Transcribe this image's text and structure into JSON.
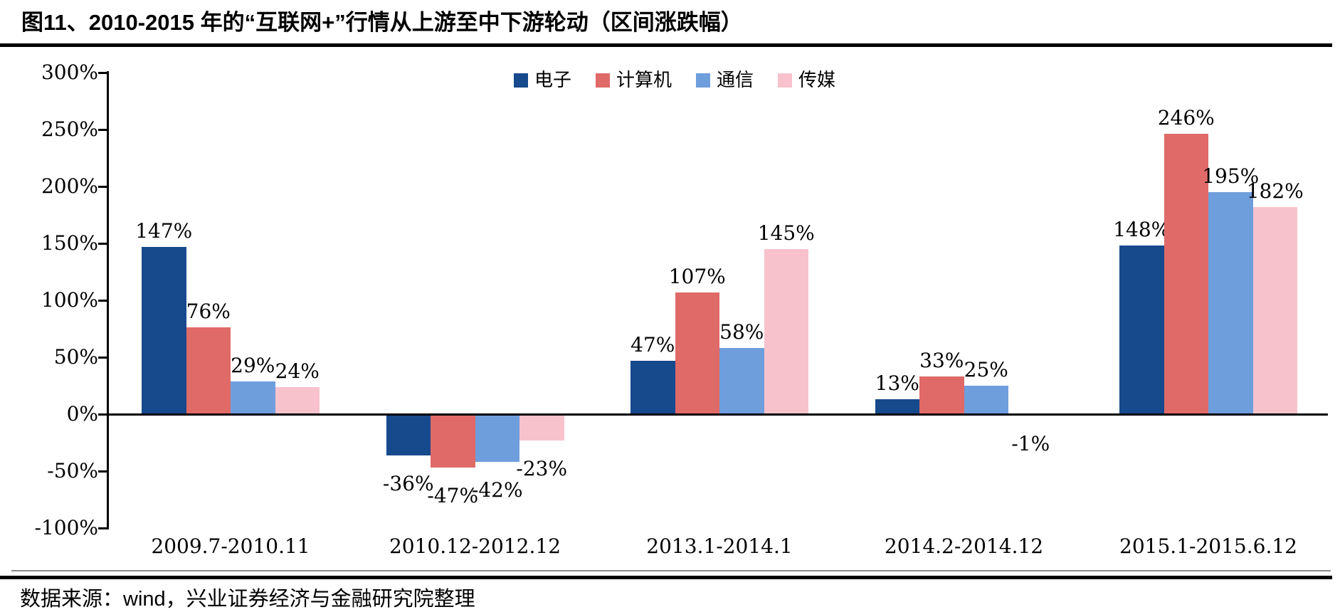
{
  "header": {
    "title": "图11、2010-2015 年的“互联网+”行情从上游至中下游轮动（区间涨跌幅）"
  },
  "footer": {
    "source": "数据来源：wind，兴业证券经济与金融研究院整理"
  },
  "chart_data": {
    "type": "bar",
    "title": "图11、2010-2015 年的“互联网+”行情从上游至中下游轮动（区间涨跌幅）",
    "categories": [
      "2009.7-2010.11",
      "2010.12-2012.12",
      "2013.1-2014.1",
      "2014.2-2014.12",
      "2015.1-2015.6.12"
    ],
    "series": [
      {
        "name": "电子",
        "color": "#164a8c",
        "values": [
          147,
          -36,
          47,
          13,
          148
        ]
      },
      {
        "name": "计算机",
        "color": "#e06a67",
        "values": [
          76,
          -47,
          107,
          33,
          246
        ]
      },
      {
        "name": "通信",
        "color": "#6f9edd",
        "values": [
          29,
          -42,
          58,
          25,
          195
        ]
      },
      {
        "name": "传媒",
        "color": "#f7c2cc",
        "values": [
          24,
          -23,
          145,
          -1,
          182
        ]
      }
    ],
    "unit": "%",
    "xlabel": "",
    "ylabel": "",
    "ylim": [
      -100,
      300
    ],
    "ytick_step": 50,
    "yticks": [
      300,
      250,
      200,
      150,
      100,
      50,
      0,
      -50,
      -100
    ],
    "grid": false,
    "legend_position": "top-center",
    "value_labels_shown": true,
    "axis_color": "#000000",
    "text_color": "#000000"
  }
}
